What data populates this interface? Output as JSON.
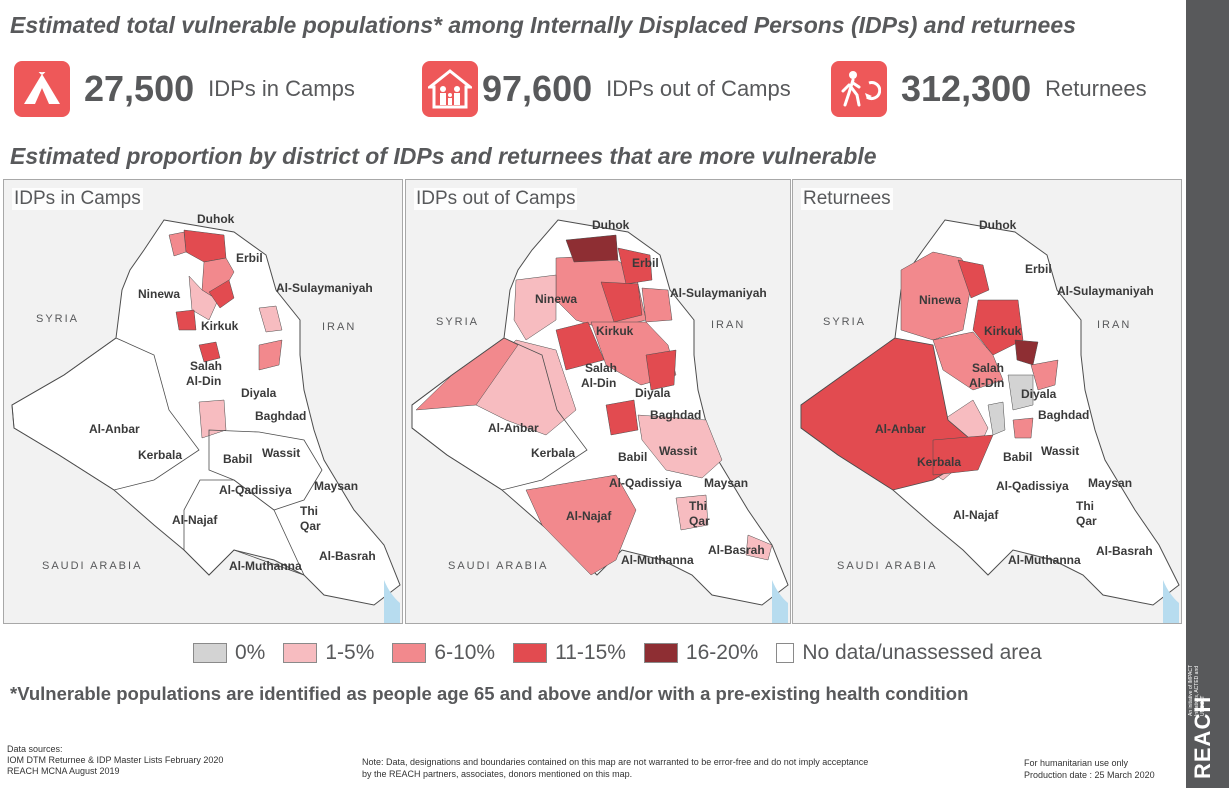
{
  "title": "Estimated total vulnerable populations* among Internally Displaced Persons (IDPs) and returnees",
  "stats": [
    {
      "icon": "tent-icon",
      "value": "27,500",
      "label": "IDPs in Camps"
    },
    {
      "icon": "family-house-icon",
      "value": "97,600",
      "label": "IDPs out of Camps"
    },
    {
      "icon": "returnee-walking-icon",
      "value": "312,300",
      "label": "Returnees"
    }
  ],
  "subtitle": "Estimated proportion by district of IDPs and returnees that are more vulnerable",
  "maps": {
    "camps": {
      "title": "IDPs in Camps"
    },
    "out_camps": {
      "title": "IDPs out of Camps"
    },
    "returnees": {
      "title": "Returnees"
    }
  },
  "labels": {
    "duhok": "Duhok",
    "erbil": "Erbil",
    "ninewa": "Ninewa",
    "sulaymaniyah": "Al-Sulaymaniyah",
    "kirkuk": "Kirkuk",
    "salah1": "Salah",
    "salah2": "Al-Din",
    "diyala": "Diyala",
    "baghdad": "Baghdad",
    "anbar": "Al-Anbar",
    "kerbala": "Kerbala",
    "babil": "Babil",
    "wassit": "Wassit",
    "qadissiya": "Al-Qadissiya",
    "maysan": "Maysan",
    "najaf": "Al-Najaf",
    "thi": "Thi",
    "qar": "Qar",
    "muthanna": "Al-Muthanna",
    "basrah": "Al-Basrah",
    "syria": "SYRIA",
    "iran": "IRAN",
    "saudi": "SAUDI ARABIA"
  },
  "legend": [
    {
      "label": "0%",
      "color": "#d3d3d3"
    },
    {
      "label": "1-5%",
      "color": "#f7bcc0"
    },
    {
      "label": "6-10%",
      "color": "#f2898d"
    },
    {
      "label": "11-15%",
      "color": "#e24b50"
    },
    {
      "label": "16-20%",
      "color": "#8e2e33"
    },
    {
      "label": "No data/unassessed area",
      "color": "#ffffff"
    }
  ],
  "footnote": "*Vulnerable populations are identified as people age 65 and above and/or with a pre-existing health condition",
  "sources": {
    "heading": "Data sources:",
    "line1": "IOM DTM Returnee & IDP Master Lists February 2020",
    "line2": "REACH MCNA August 2019"
  },
  "note": {
    "line1": "Note: Data, designations and boundaries contained on this map are not warranted to be error-free and do not imply acceptance",
    "line2": "by the REACH partners, associates, donors mentioned on this map."
  },
  "production": {
    "line1": "For humanitarian use only",
    "line2": "Production date : 25 March 2020"
  },
  "brand": {
    "logo": "REACH",
    "tagline": "An initiative of IMPACT Initiatives, ACTED and UNOSAT"
  },
  "colors": {
    "accent": "#ee5859",
    "sidebar": "#58595b",
    "text": "#58595b"
  }
}
